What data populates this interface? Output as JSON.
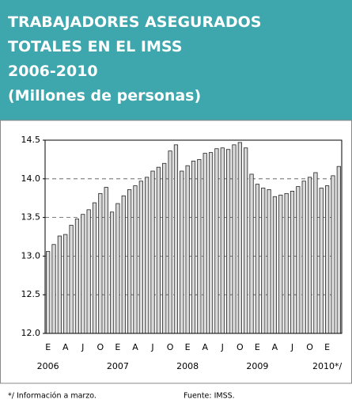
{
  "header": {
    "lines": [
      "TRABAJADORES ASEGURADOS",
      "TOTALES EN EL IMSS",
      "2006-2010",
      "(Millones de personas)"
    ]
  },
  "chart_data": {
    "type": "bar",
    "categories": [
      "E",
      null,
      null,
      "A",
      null,
      null,
      "J",
      null,
      null,
      "O",
      null,
      null,
      "E",
      null,
      null,
      "A",
      null,
      null,
      "J",
      null,
      null,
      "O",
      null,
      null,
      "E",
      null,
      null,
      "A",
      null,
      null,
      "J",
      null,
      null,
      "O",
      null,
      null,
      "E",
      null,
      null,
      "A",
      null,
      null,
      "J",
      null,
      null,
      "O",
      null,
      null,
      "E",
      null,
      null
    ],
    "values": [
      13.06,
      13.15,
      13.26,
      13.28,
      13.4,
      13.48,
      13.54,
      13.6,
      13.69,
      13.81,
      13.89,
      13.57,
      13.68,
      13.78,
      13.86,
      13.91,
      13.97,
      14.02,
      14.1,
      14.15,
      14.2,
      14.36,
      14.44,
      14.1,
      14.17,
      14.23,
      14.25,
      14.33,
      14.34,
      14.39,
      14.4,
      14.38,
      14.44,
      14.47,
      14.4,
      14.06,
      13.93,
      13.88,
      13.86,
      13.77,
      13.79,
      13.81,
      13.84,
      13.9,
      13.97,
      14.02,
      14.08,
      13.88,
      13.91,
      14.04,
      14.16
    ],
    "years": [
      "2006",
      "2007",
      "2008",
      "2009",
      "2010*/"
    ],
    "color": "#d9d9d9",
    "ylim": [
      12.0,
      14.5
    ],
    "yticks": [
      {
        "value": 12,
        "label": "12.0"
      },
      12.5,
      {
        "value": 13,
        "label": "13.0"
      },
      13.5,
      {
        "value": 14,
        "label": "14.0"
      },
      14.5
    ],
    "grid": true
  },
  "notes": [
    "*/ Información a marzo.",
    "Fuente: IMSS."
  ]
}
